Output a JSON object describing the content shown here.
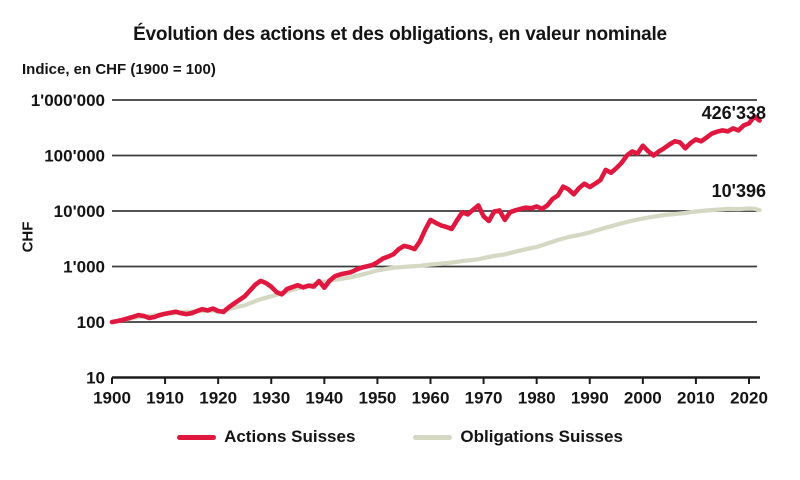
{
  "chart_data": {
    "type": "line",
    "title": "Évolution des actions et des obligations, en valeur nominale",
    "subtitle": "Indice, en CHF (1900 = 100)",
    "ylabel": "CHF",
    "xlabel": "",
    "y_scale": "log",
    "grid": true,
    "legend_position": "bottom",
    "x_range": [
      1900,
      2022
    ],
    "y_range": [
      10,
      1000000
    ],
    "x_ticks": [
      1900,
      1910,
      1920,
      1930,
      1940,
      1950,
      1960,
      1970,
      1980,
      1990,
      2000,
      2010,
      2020
    ],
    "y_ticks": [
      {
        "value": 10,
        "label": "10"
      },
      {
        "value": 100,
        "label": "100"
      },
      {
        "value": 1000,
        "label": "1'000"
      },
      {
        "value": 10000,
        "label": "10'000"
      },
      {
        "value": 100000,
        "label": "100'000"
      },
      {
        "value": 1000000,
        "label": "1'000'000"
      }
    ],
    "years": [
      1900,
      1901,
      1902,
      1903,
      1904,
      1905,
      1906,
      1907,
      1908,
      1909,
      1910,
      1911,
      1912,
      1913,
      1914,
      1915,
      1916,
      1917,
      1918,
      1919,
      1920,
      1921,
      1922,
      1923,
      1924,
      1925,
      1926,
      1927,
      1928,
      1929,
      1930,
      1931,
      1932,
      1933,
      1934,
      1935,
      1936,
      1937,
      1938,
      1939,
      1940,
      1941,
      1942,
      1943,
      1944,
      1945,
      1946,
      1947,
      1948,
      1949,
      1950,
      1951,
      1952,
      1953,
      1954,
      1955,
      1956,
      1957,
      1958,
      1959,
      1960,
      1961,
      1962,
      1963,
      1964,
      1965,
      1966,
      1967,
      1968,
      1969,
      1970,
      1971,
      1972,
      1973,
      1974,
      1975,
      1976,
      1977,
      1978,
      1979,
      1980,
      1981,
      1982,
      1983,
      1984,
      1985,
      1986,
      1987,
      1988,
      1989,
      1990,
      1991,
      1992,
      1993,
      1994,
      1995,
      1996,
      1997,
      1998,
      1999,
      2000,
      2001,
      2002,
      2003,
      2004,
      2005,
      2006,
      2007,
      2008,
      2009,
      2010,
      2011,
      2012,
      2013,
      2014,
      2015,
      2016,
      2017,
      2018,
      2019,
      2020,
      2021,
      2022
    ],
    "series": [
      {
        "name": "Actions Suisses",
        "color": "#e0173f",
        "end_label": "426'338",
        "end_value": 426338,
        "values": [
          100,
          104,
          109,
          116,
          124,
          133,
          128,
          118,
          123,
          133,
          141,
          147,
          153,
          144,
          139,
          144,
          157,
          170,
          162,
          174,
          158,
          152,
          185,
          215,
          250,
          290,
          370,
          470,
          550,
          505,
          430,
          345,
          315,
          395,
          425,
          460,
          420,
          450,
          435,
          545,
          415,
          555,
          670,
          720,
          755,
          790,
          875,
          955,
          1005,
          1060,
          1190,
          1390,
          1500,
          1660,
          2050,
          2350,
          2240,
          2060,
          2850,
          4600,
          6900,
          6100,
          5500,
          5150,
          4750,
          6800,
          9500,
          8700,
          10500,
          12600,
          8000,
          6600,
          9800,
          10200,
          6900,
          9500,
          10300,
          10900,
          11500,
          11200,
          12100,
          10900,
          12600,
          16500,
          19000,
          27500,
          24500,
          20000,
          26000,
          31000,
          27000,
          31000,
          36000,
          55000,
          49000,
          59000,
          74000,
          100000,
          118000,
          108000,
          150000,
          120000,
          100000,
          118000,
          135000,
          158000,
          180000,
          172000,
          135000,
          168000,
          195000,
          180000,
          210000,
          248000,
          268000,
          283000,
          272000,
          308000,
          283000,
          348000,
          378000,
          505000,
          426338
        ]
      },
      {
        "name": "Obligations Suisses",
        "color": "#d5d8c3",
        "end_label": "10'396",
        "end_value": 10396,
        "values": [
          100,
          104,
          109,
          113,
          118,
          122,
          125,
          129,
          132,
          136,
          140,
          143,
          146,
          149,
          152,
          154,
          156,
          158,
          160,
          162,
          150,
          160,
          172,
          181,
          190,
          200,
          218,
          238,
          258,
          273,
          290,
          309,
          330,
          354,
          380,
          404,
          430,
          454,
          480,
          504,
          530,
          552,
          575,
          596,
          618,
          640,
          675,
          712,
          750,
          798,
          850,
          882,
          915,
          950,
          966,
          983,
          1000,
          1015,
          1030,
          1055,
          1080,
          1103,
          1126,
          1150,
          1182,
          1216,
          1250,
          1282,
          1316,
          1350,
          1420,
          1484,
          1550,
          1598,
          1650,
          1747,
          1850,
          1947,
          2050,
          2148,
          2250,
          2418,
          2600,
          2793,
          3000,
          3194,
          3400,
          3547,
          3700,
          3895,
          4100,
          4390,
          4700,
          4992,
          5300,
          5639,
          6000,
          6342,
          6700,
          6995,
          7300,
          7596,
          7900,
          8196,
          8500,
          8649,
          8800,
          8998,
          9200,
          9496,
          9800,
          9998,
          10200,
          10398,
          10600,
          10749,
          10900,
          10850,
          10800,
          10949,
          11100,
          11000,
          10396
        ]
      }
    ]
  },
  "colors": {
    "background": "#ffffff",
    "grid": "#3b3b3b",
    "axis": "#1c1c1c",
    "text": "#141414"
  }
}
